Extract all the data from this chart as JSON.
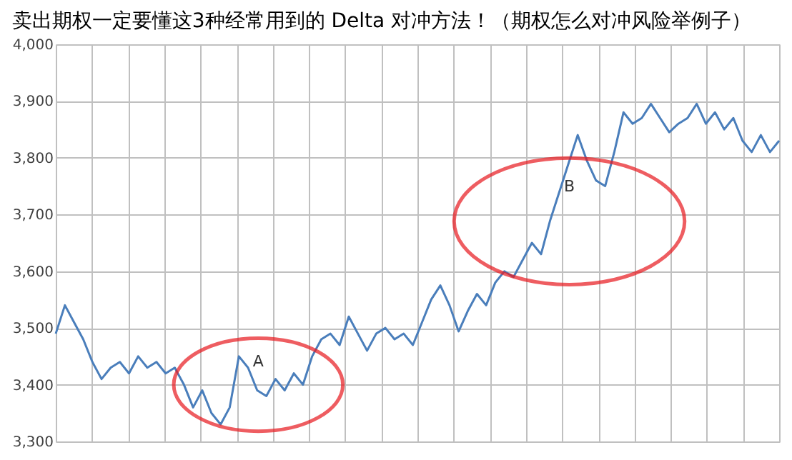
{
  "chart_data": {
    "type": "line",
    "title": "卖出期权一定要懂这3种经常用到的 Delta 对冲方法！（期权怎么对冲风险举例子）",
    "categories": [
      null,
      null,
      null,
      null,
      null,
      null,
      null,
      null,
      null,
      null,
      null,
      null,
      null,
      null,
      null,
      null,
      null,
      null,
      null,
      null,
      null,
      null,
      null,
      null,
      null,
      null,
      null,
      null,
      null,
      null,
      null,
      null,
      null,
      null,
      null,
      null,
      null,
      null,
      null,
      null,
      null,
      null,
      null,
      null,
      null,
      null,
      null,
      null,
      null,
      null,
      null,
      null,
      null,
      null,
      null,
      null,
      null,
      null,
      null,
      null,
      null,
      null,
      null,
      null,
      null,
      null,
      null,
      null,
      null,
      null,
      null,
      null,
      null,
      null,
      null,
      null,
      null,
      null,
      null,
      null
    ],
    "series": [
      {
        "color": "#4a7ebb",
        "values": [
          3490,
          3540,
          3510,
          3480,
          3440,
          3410,
          3430,
          3440,
          3420,
          3450,
          3430,
          3440,
          3420,
          3430,
          3400,
          3360,
          3390,
          3350,
          3330,
          3360,
          3450,
          3430,
          3390,
          3380,
          3410,
          3390,
          3420,
          3400,
          3450,
          3480,
          3490,
          3470,
          3520,
          3490,
          3460,
          3490,
          3500,
          3480,
          3490,
          3470,
          3510,
          3550,
          3575,
          3540,
          3494,
          3530,
          3560,
          3540,
          3580,
          3600,
          3590,
          3620,
          3650,
          3630,
          3690,
          3740,
          3790,
          3840,
          3795,
          3760,
          3750,
          3810,
          3880,
          3860,
          3870,
          3895,
          3870,
          3845,
          3860,
          3870,
          3895,
          3860,
          3880,
          3850,
          3870,
          3830,
          3810,
          3840,
          3810,
          3830
        ]
      }
    ],
    "ylim": [
      3300,
      4000
    ],
    "yticks": [
      {
        "value": 3300,
        "label": "3,300"
      },
      {
        "value": 3400,
        "label": "3,400"
      },
      {
        "value": 3500,
        "label": "3,500"
      },
      {
        "value": 3600,
        "label": "3,600"
      },
      {
        "value": 3700,
        "label": "3,700"
      },
      {
        "value": 3800,
        "label": "3,800"
      },
      {
        "value": 3900,
        "label": "3,900"
      },
      {
        "value": 4000,
        "label": "4,000"
      }
    ],
    "grid": true,
    "tick_labels": "y",
    "annotations": [
      "A",
      "B"
    ]
  }
}
